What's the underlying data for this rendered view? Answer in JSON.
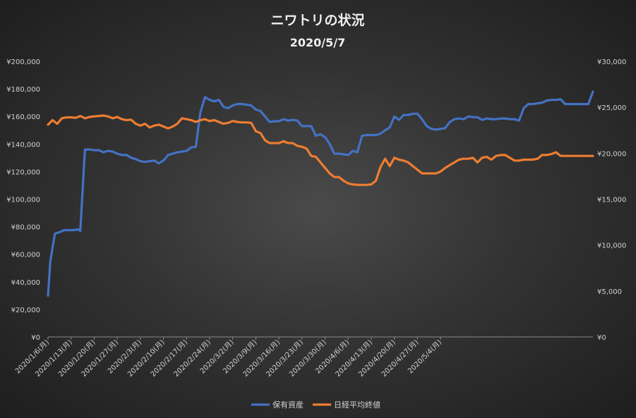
{
  "chart_data": {
    "type": "line",
    "title": "ニワトリの状況",
    "subtitle": "2020/5/7",
    "legend_position": "bottom",
    "grid": false,
    "y_left": {
      "min": 0,
      "max": 200000,
      "ticks": [
        "¥0",
        "¥20,000",
        "¥40,000",
        "¥60,000",
        "¥80,000",
        "¥100,000",
        "¥120,000",
        "¥140,000",
        "¥160,000",
        "¥180,000",
        "¥200,000"
      ]
    },
    "y_right": {
      "min": 0,
      "max": 30000,
      "ticks": [
        "¥0",
        "¥5,000",
        "¥10,000",
        "¥15,000",
        "¥20,000",
        "¥25,000",
        "¥30,000"
      ]
    },
    "x_tick_labels": [
      "2020/1/6(月)",
      "2020/1/13(月)",
      "2020/1/20(月)",
      "2020/1/27(月)",
      "2020/2/3(月)",
      "2020/2/10(月)",
      "2020/2/17(月)",
      "2020/2/24(月)",
      "2020/3/2(月)",
      "2020/3/9(月)",
      "2020/3/16(月)",
      "2020/3/23(月)",
      "2020/3/30(月)",
      "2020/4/6(月)",
      "2020/4/13(月)",
      "2020/4/20(月)",
      "2020/4/27(月)",
      "2020/5/4(月)"
    ],
    "series": [
      {
        "name": "保有資産",
        "axis": "left",
        "color": "#4472C4",
        "values": [
          [
            0,
            30000
          ],
          [
            0.5,
            55000
          ],
          [
            1.5,
            75000
          ],
          [
            2.5,
            76000
          ],
          [
            3.5,
            77500
          ],
          [
            4.5,
            77500
          ],
          [
            5.5,
            77500
          ],
          [
            6.5,
            78000
          ],
          [
            7,
            77000
          ],
          [
            8,
            136000
          ],
          [
            9,
            136000
          ],
          [
            10,
            135500
          ],
          [
            11,
            135500
          ],
          [
            12,
            134000
          ],
          [
            13,
            135000
          ],
          [
            14,
            134500
          ],
          [
            15,
            133000
          ],
          [
            16,
            132000
          ],
          [
            17,
            132000
          ],
          [
            18,
            130000
          ],
          [
            19,
            129000
          ],
          [
            20,
            127500
          ],
          [
            21,
            127000
          ],
          [
            22,
            127500
          ],
          [
            23,
            128000
          ],
          [
            24,
            126000
          ],
          [
            25,
            128000
          ],
          [
            26,
            132000
          ],
          [
            27,
            133000
          ],
          [
            28,
            134000
          ],
          [
            29,
            134500
          ],
          [
            30,
            135000
          ],
          [
            31,
            137500
          ],
          [
            32,
            138000
          ],
          [
            33,
            163000
          ],
          [
            34,
            174000
          ],
          [
            35,
            172000
          ],
          [
            36,
            171000
          ],
          [
            37,
            172000
          ],
          [
            38,
            167000
          ],
          [
            39,
            166000
          ],
          [
            40,
            168000
          ],
          [
            41,
            169000
          ],
          [
            42,
            169000
          ],
          [
            43,
            168500
          ],
          [
            44,
            168000
          ],
          [
            45,
            165000
          ],
          [
            46,
            164000
          ],
          [
            47,
            160000
          ],
          [
            48,
            156000
          ],
          [
            49,
            156500
          ],
          [
            50,
            156500
          ],
          [
            51,
            158000
          ],
          [
            52,
            157000
          ],
          [
            53,
            157500
          ],
          [
            54,
            157000
          ],
          [
            55,
            153000
          ],
          [
            56,
            153000
          ],
          [
            57,
            153000
          ],
          [
            58,
            146000
          ],
          [
            59,
            147000
          ],
          [
            60,
            145000
          ],
          [
            61,
            140000
          ],
          [
            62,
            133000
          ],
          [
            63,
            133000
          ],
          [
            64,
            132500
          ],
          [
            65,
            132000
          ],
          [
            66,
            135000
          ],
          [
            67,
            134000
          ],
          [
            68,
            146000
          ],
          [
            69,
            146500
          ],
          [
            70,
            146500
          ],
          [
            71,
            146500
          ],
          [
            72,
            147500
          ],
          [
            73,
            150000
          ],
          [
            74,
            152000
          ],
          [
            75,
            160000
          ],
          [
            76,
            157500
          ],
          [
            77,
            161000
          ],
          [
            78,
            161000
          ],
          [
            79,
            162000
          ],
          [
            80,
            162000
          ],
          [
            81,
            158000
          ],
          [
            82,
            153000
          ],
          [
            83,
            151000
          ],
          [
            84,
            150500
          ],
          [
            85,
            151000
          ],
          [
            86,
            151500
          ],
          [
            87,
            156000
          ],
          [
            88,
            158000
          ],
          [
            89,
            158500
          ],
          [
            90,
            158000
          ],
          [
            91,
            160000
          ],
          [
            92,
            159500
          ],
          [
            93,
            159500
          ],
          [
            94,
            157500
          ],
          [
            95,
            158500
          ],
          [
            96,
            158000
          ],
          [
            97,
            158000
          ],
          [
            98,
            158500
          ],
          [
            99,
            158500
          ],
          [
            100,
            158000
          ],
          [
            101,
            158000
          ],
          [
            102,
            157000
          ],
          [
            103,
            166000
          ],
          [
            104,
            169000
          ],
          [
            105,
            169000
          ],
          [
            106,
            169500
          ],
          [
            107,
            170000
          ],
          [
            108,
            171500
          ],
          [
            109,
            172000
          ],
          [
            110,
            172000
          ],
          [
            111,
            172500
          ],
          [
            112,
            169000
          ],
          [
            113,
            169000
          ],
          [
            114,
            169000
          ],
          [
            115,
            169000
          ],
          [
            116,
            169000
          ],
          [
            117,
            169000
          ],
          [
            118,
            178000
          ]
        ]
      },
      {
        "name": "日経平均終値",
        "axis": "right",
        "color": "#ED7D31",
        "values": [
          [
            0,
            23100
          ],
          [
            1,
            23600
          ],
          [
            2,
            23200
          ],
          [
            3,
            23800
          ],
          [
            4,
            23900
          ],
          [
            5,
            23900
          ],
          [
            6,
            23850
          ],
          [
            7,
            24050
          ],
          [
            8,
            23800
          ],
          [
            9,
            23950
          ],
          [
            10,
            24000
          ],
          [
            11,
            24050
          ],
          [
            12,
            24100
          ],
          [
            13,
            24000
          ],
          [
            14,
            23800
          ],
          [
            15,
            23950
          ],
          [
            16,
            23700
          ],
          [
            17,
            23600
          ],
          [
            18,
            23650
          ],
          [
            19,
            23200
          ],
          [
            20,
            23000
          ],
          [
            21,
            23200
          ],
          [
            22,
            22800
          ],
          [
            23,
            23000
          ],
          [
            24,
            23100
          ],
          [
            25,
            22900
          ],
          [
            26,
            22700
          ],
          [
            27,
            22900
          ],
          [
            28,
            23200
          ],
          [
            29,
            23800
          ],
          [
            30,
            23700
          ],
          [
            31,
            23600
          ],
          [
            32,
            23400
          ],
          [
            33,
            23600
          ],
          [
            34,
            23700
          ],
          [
            35,
            23500
          ],
          [
            36,
            23600
          ],
          [
            37,
            23400
          ],
          [
            38,
            23200
          ],
          [
            39,
            23300
          ],
          [
            40,
            23500
          ],
          [
            41,
            23400
          ],
          [
            42,
            23350
          ],
          [
            43,
            23350
          ],
          [
            44,
            23300
          ],
          [
            45,
            22400
          ],
          [
            46,
            22200
          ],
          [
            47,
            21400
          ],
          [
            48,
            21100
          ],
          [
            49,
            21100
          ],
          [
            50,
            21100
          ],
          [
            51,
            21300
          ],
          [
            52,
            21100
          ],
          [
            53,
            21100
          ],
          [
            54,
            20800
          ],
          [
            55,
            20700
          ],
          [
            56,
            20500
          ],
          [
            57,
            19700
          ],
          [
            58,
            19600
          ],
          [
            59,
            19000
          ],
          [
            60,
            18400
          ],
          [
            61,
            17800
          ],
          [
            62,
            17400
          ],
          [
            63,
            17400
          ],
          [
            64,
            17000
          ],
          [
            65,
            16700
          ],
          [
            66,
            16600
          ],
          [
            67,
            16550
          ],
          [
            68,
            16550
          ],
          [
            69,
            16550
          ],
          [
            70,
            16600
          ],
          [
            71,
            17000
          ],
          [
            72,
            18500
          ],
          [
            73,
            19400
          ],
          [
            74,
            18600
          ],
          [
            75,
            19500
          ],
          [
            76,
            19300
          ],
          [
            77,
            19200
          ],
          [
            78,
            19000
          ],
          [
            79,
            18600
          ],
          [
            80,
            18200
          ],
          [
            81,
            17800
          ],
          [
            82,
            17800
          ],
          [
            83,
            17800
          ],
          [
            84,
            17800
          ],
          [
            85,
            18000
          ],
          [
            86,
            18400
          ],
          [
            87,
            18700
          ],
          [
            88,
            19000
          ],
          [
            89,
            19300
          ],
          [
            90,
            19400
          ],
          [
            91,
            19400
          ],
          [
            92,
            19500
          ],
          [
            93,
            19000
          ],
          [
            94,
            19500
          ],
          [
            95,
            19600
          ],
          [
            96,
            19300
          ],
          [
            97,
            19700
          ],
          [
            98,
            19800
          ],
          [
            99,
            19800
          ],
          [
            100,
            19500
          ],
          [
            101,
            19200
          ],
          [
            102,
            19200
          ],
          [
            103,
            19300
          ],
          [
            104,
            19300
          ],
          [
            105,
            19300
          ],
          [
            106,
            19400
          ],
          [
            107,
            19800
          ],
          [
            108,
            19800
          ],
          [
            109,
            19900
          ],
          [
            110,
            20100
          ],
          [
            111,
            19700
          ],
          [
            112,
            19700
          ],
          [
            113,
            19700
          ],
          [
            114,
            19700
          ],
          [
            115,
            19700
          ],
          [
            116,
            19700
          ],
          [
            117,
            19700
          ],
          [
            118,
            19700
          ]
        ]
      }
    ]
  }
}
